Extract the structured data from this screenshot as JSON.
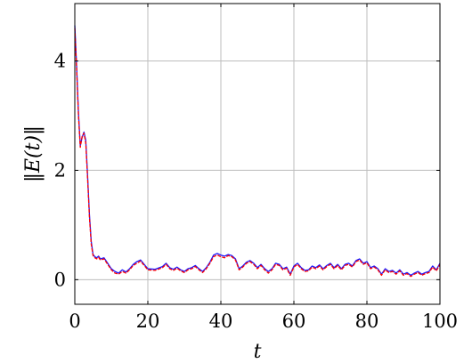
{
  "chart_data": {
    "type": "line",
    "title": "",
    "xlabel": "t",
    "ylabel": "‖E(t)‖",
    "xlim": [
      0,
      100
    ],
    "ylim": [
      -0.45,
      5.05
    ],
    "x_ticks": [
      0,
      20,
      40,
      60,
      80,
      100
    ],
    "y_ticks": [
      0,
      2,
      4
    ],
    "grid": true,
    "legend": "none",
    "series": [
      {
        "color": "#1a1aff",
        "x": [
          0,
          0.5,
          1,
          1.5,
          2,
          2.5,
          3,
          3.5,
          4,
          4.5,
          5,
          5.5,
          6,
          6.5,
          7,
          8,
          9,
          10,
          11,
          12,
          13,
          14,
          15,
          16,
          17,
          18,
          19,
          20,
          22,
          24,
          25,
          26,
          27,
          28,
          29,
          30,
          31,
          32,
          33,
          34,
          35,
          36,
          37,
          38,
          39,
          40,
          41,
          42,
          43,
          44,
          45,
          46,
          47,
          48,
          49,
          50,
          51,
          52,
          53,
          54,
          55,
          56,
          57,
          58,
          59,
          60,
          61,
          62,
          63,
          64,
          65,
          66,
          67,
          68,
          69,
          70,
          71,
          72,
          73,
          74,
          75,
          76,
          77,
          78,
          79,
          80,
          81,
          82,
          83,
          84,
          85,
          86,
          87,
          88,
          89,
          90,
          91,
          92,
          93,
          94,
          95,
          96,
          97,
          98,
          99,
          100
        ],
        "y": [
          4.65,
          3.9,
          3.05,
          2.45,
          2.6,
          2.7,
          2.55,
          1.9,
          1.2,
          0.7,
          0.46,
          0.42,
          0.4,
          0.43,
          0.38,
          0.4,
          0.3,
          0.2,
          0.15,
          0.12,
          0.18,
          0.14,
          0.2,
          0.28,
          0.33,
          0.36,
          0.28,
          0.2,
          0.19,
          0.24,
          0.3,
          0.22,
          0.19,
          0.23,
          0.18,
          0.15,
          0.2,
          0.22,
          0.26,
          0.2,
          0.15,
          0.22,
          0.32,
          0.45,
          0.48,
          0.45,
          0.43,
          0.46,
          0.44,
          0.38,
          0.2,
          0.25,
          0.32,
          0.35,
          0.3,
          0.22,
          0.28,
          0.2,
          0.15,
          0.2,
          0.3,
          0.28,
          0.2,
          0.23,
          0.1,
          0.25,
          0.3,
          0.22,
          0.17,
          0.18,
          0.25,
          0.22,
          0.27,
          0.2,
          0.26,
          0.3,
          0.22,
          0.28,
          0.2,
          0.28,
          0.3,
          0.25,
          0.35,
          0.38,
          0.3,
          0.33,
          0.22,
          0.25,
          0.2,
          0.1,
          0.2,
          0.15,
          0.17,
          0.12,
          0.18,
          0.1,
          0.13,
          0.08,
          0.12,
          0.15,
          0.1,
          0.13,
          0.15,
          0.25,
          0.18,
          0.3
        ]
      },
      {
        "color": "#ff0000",
        "x": [
          0,
          0.5,
          1,
          1.5,
          2,
          2.5,
          3,
          3.5,
          4,
          4.5,
          5,
          5.5,
          6,
          6.5,
          7,
          8,
          9,
          10,
          11,
          12,
          13,
          14,
          15,
          16,
          17,
          18,
          19,
          20,
          22,
          24,
          25,
          26,
          27,
          28,
          29,
          30,
          31,
          32,
          33,
          34,
          35,
          36,
          37,
          38,
          39,
          40,
          41,
          42,
          43,
          44,
          45,
          46,
          47,
          48,
          49,
          50,
          51,
          52,
          53,
          54,
          55,
          56,
          57,
          58,
          59,
          60,
          61,
          62,
          63,
          64,
          65,
          66,
          67,
          68,
          69,
          70,
          71,
          72,
          73,
          74,
          75,
          76,
          77,
          78,
          79,
          80,
          81,
          82,
          83,
          84,
          85,
          86,
          87,
          88,
          89,
          90,
          91,
          92,
          93,
          94,
          95,
          96,
          97,
          98,
          99,
          100
        ],
        "y": [
          4.6,
          3.85,
          3.0,
          2.42,
          2.62,
          2.68,
          2.5,
          1.85,
          1.15,
          0.65,
          0.44,
          0.4,
          0.38,
          0.41,
          0.36,
          0.38,
          0.28,
          0.18,
          0.12,
          0.1,
          0.15,
          0.12,
          0.18,
          0.26,
          0.3,
          0.34,
          0.26,
          0.18,
          0.17,
          0.22,
          0.28,
          0.2,
          0.17,
          0.21,
          0.16,
          0.13,
          0.18,
          0.2,
          0.24,
          0.18,
          0.13,
          0.2,
          0.3,
          0.42,
          0.45,
          0.42,
          0.4,
          0.44,
          0.42,
          0.36,
          0.18,
          0.23,
          0.3,
          0.33,
          0.28,
          0.2,
          0.26,
          0.18,
          0.12,
          0.18,
          0.28,
          0.26,
          0.18,
          0.21,
          0.08,
          0.23,
          0.28,
          0.2,
          0.15,
          0.16,
          0.23,
          0.2,
          0.25,
          0.18,
          0.24,
          0.28,
          0.2,
          0.26,
          0.18,
          0.26,
          0.28,
          0.23,
          0.33,
          0.36,
          0.28,
          0.31,
          0.2,
          0.23,
          0.18,
          0.08,
          0.18,
          0.13,
          0.15,
          0.1,
          0.16,
          0.08,
          0.11,
          0.06,
          0.1,
          0.13,
          0.08,
          0.11,
          0.13,
          0.23,
          0.16,
          0.28
        ]
      }
    ]
  }
}
